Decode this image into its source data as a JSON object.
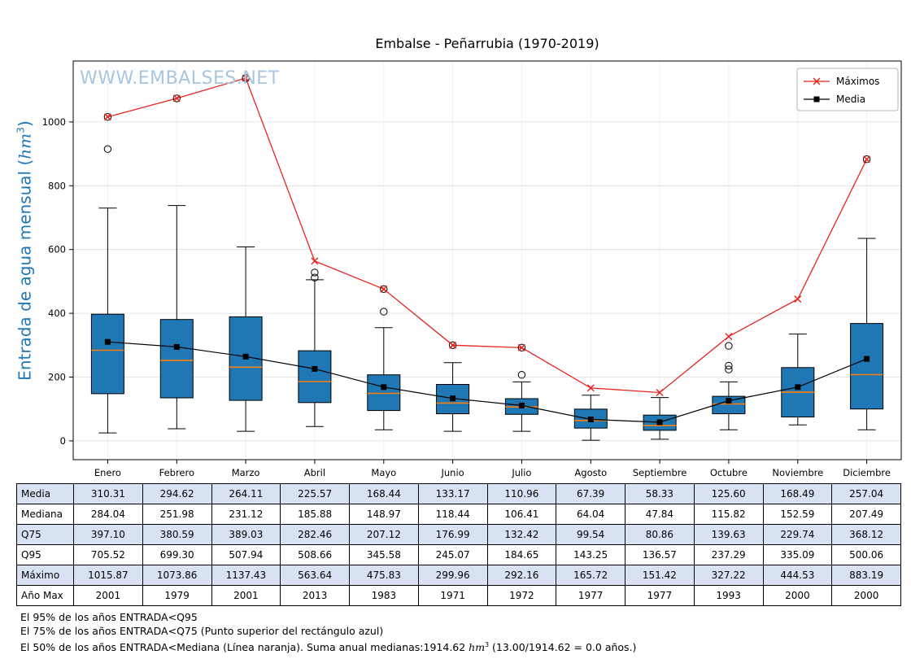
{
  "title": "Embalse - Peñarrubia (1970-2019)",
  "watermark": "WWW.EMBALSES.NET",
  "ylabel": {
    "prefix": "Entrada de agua mensual (",
    "unit": "hm",
    "exp": "3",
    "suffix": ")"
  },
  "legend": {
    "maximos_label": "Máximos",
    "media_label": "Media"
  },
  "table": {
    "rows": [
      {
        "label": "Media",
        "values": [
          "310.31",
          "294.62",
          "264.11",
          "225.57",
          "168.44",
          "133.17",
          "110.96",
          "67.39",
          "58.33",
          "125.60",
          "168.49",
          "257.04"
        ]
      },
      {
        "label": "Mediana",
        "values": [
          "284.04",
          "251.98",
          "231.12",
          "185.88",
          "148.97",
          "118.44",
          "106.41",
          "64.04",
          "47.84",
          "115.82",
          "152.59",
          "207.49"
        ]
      },
      {
        "label": "Q75",
        "values": [
          "397.10",
          "380.59",
          "389.03",
          "282.46",
          "207.12",
          "176.99",
          "132.42",
          "99.54",
          "80.86",
          "139.63",
          "229.74",
          "368.12"
        ]
      },
      {
        "label": "Q95",
        "values": [
          "705.52",
          "699.30",
          "507.94",
          "508.66",
          "345.58",
          "245.07",
          "184.65",
          "143.25",
          "136.57",
          "237.29",
          "335.09",
          "500.06"
        ]
      },
      {
        "label": "Máximo",
        "values": [
          "1015.87",
          "1073.86",
          "1137.43",
          "563.64",
          "475.83",
          "299.96",
          "292.16",
          "165.72",
          "151.42",
          "327.22",
          "444.53",
          "883.19"
        ]
      },
      {
        "label": "Año Max",
        "values": [
          "2001",
          "1979",
          "2001",
          "2013",
          "1983",
          "1971",
          "1972",
          "1977",
          "1977",
          "1993",
          "2000",
          "2000"
        ]
      }
    ]
  },
  "footer": {
    "line1": "El 95% de los años ENTRADA<Q95",
    "line2": "El 75% de los años ENTRADA<Q75 (Punto superior del rectángulo azul)",
    "line3a": "El 50% de los años ENTRADA<Mediana (Línea naranja). Suma anual medianas:1914.62 ",
    "line3_unit": "hm",
    "line3_exp": "3",
    "line3b": " (13.00/1914.62 = 0.0 años.)"
  },
  "chart_data": {
    "type": "boxplot+lines",
    "title": "Embalse - Peñarrubia (1970-2019)",
    "ylabel": "Entrada de agua mensual (hm³)",
    "categories": [
      "Enero",
      "Febrero",
      "Marzo",
      "Abril",
      "Mayo",
      "Junio",
      "Julio",
      "Agosto",
      "Septiembre",
      "Octubre",
      "Noviembre",
      "Diciembre"
    ],
    "ylim": [
      -59,
      1191
    ],
    "yticks": [
      0,
      200,
      400,
      600,
      800,
      1000
    ],
    "grid": true,
    "legend_position": "top-right",
    "series": {
      "media": [
        310.31,
        294.62,
        264.11,
        225.57,
        168.44,
        133.17,
        110.96,
        67.39,
        58.33,
        125.6,
        168.49,
        257.04
      ],
      "mediana": [
        284.04,
        251.98,
        231.12,
        185.88,
        148.97,
        118.44,
        106.41,
        64.04,
        47.84,
        115.82,
        152.59,
        207.49
      ],
      "q75": [
        397.1,
        380.59,
        389.03,
        282.46,
        207.12,
        176.99,
        132.42,
        99.54,
        80.86,
        139.63,
        229.74,
        368.12
      ],
      "q95": [
        705.52,
        699.3,
        507.94,
        508.66,
        345.58,
        245.07,
        184.65,
        143.25,
        136.57,
        237.29,
        335.09,
        500.06
      ],
      "maximo": [
        1015.87,
        1073.86,
        1137.43,
        563.64,
        475.83,
        299.96,
        292.16,
        165.72,
        151.42,
        327.22,
        444.53,
        883.19
      ],
      "anio_max": [
        2001,
        1979,
        2001,
        2013,
        1983,
        1971,
        1972,
        1977,
        1977,
        1993,
        2000,
        2000
      ]
    },
    "boxes": [
      {
        "q1": 148,
        "med": 284.04,
        "q3": 397.1,
        "wlo": 25,
        "whi": 730,
        "outliers": [
          915
        ],
        "max_circled": true
      },
      {
        "q1": 135,
        "med": 251.98,
        "q3": 380.59,
        "wlo": 38,
        "whi": 738,
        "outliers": [],
        "max_circled": true
      },
      {
        "q1": 127,
        "med": 231.12,
        "q3": 389.03,
        "wlo": 30,
        "whi": 608,
        "outliers": [],
        "max_circled": true
      },
      {
        "q1": 120,
        "med": 185.88,
        "q3": 282.46,
        "wlo": 45,
        "whi": 505,
        "outliers": [
          512,
          528
        ],
        "max_circled": false
      },
      {
        "q1": 95,
        "med": 148.97,
        "q3": 207.12,
        "wlo": 35,
        "whi": 355,
        "outliers": [
          405
        ],
        "max_circled": true
      },
      {
        "q1": 85,
        "med": 118.44,
        "q3": 176.99,
        "wlo": 30,
        "whi": 245,
        "outliers": [],
        "max_circled": true
      },
      {
        "q1": 83,
        "med": 106.41,
        "q3": 132.42,
        "wlo": 30,
        "whi": 185,
        "outliers": [
          207
        ],
        "max_circled": true
      },
      {
        "q1": 40,
        "med": 64.04,
        "q3": 99.54,
        "wlo": 2,
        "whi": 143,
        "outliers": [],
        "max_circled": false
      },
      {
        "q1": 33,
        "med": 47.84,
        "q3": 80.86,
        "wlo": 5,
        "whi": 136,
        "outliers": [],
        "max_circled": false
      },
      {
        "q1": 85,
        "med": 115.82,
        "q3": 139.63,
        "wlo": 35,
        "whi": 185,
        "outliers": [
          224,
          236,
          298
        ],
        "max_circled": false
      },
      {
        "q1": 75,
        "med": 152.59,
        "q3": 229.74,
        "wlo": 50,
        "whi": 335,
        "outliers": [],
        "max_circled": false
      },
      {
        "q1": 100,
        "med": 207.49,
        "q3": 368.12,
        "wlo": 35,
        "whi": 635,
        "outliers": [],
        "max_circled": true
      }
    ],
    "colors": {
      "box_fill": "#1f77b4",
      "median_line": "#ff7f0e",
      "max_line": "#e8251f",
      "media_line": "#000000",
      "grid": "#dcdcdc",
      "grid_v": "#ececec",
      "table_alt_row": "#d9e2f3",
      "ylabel": "#1f77b4",
      "watermark": "#a9c6e0"
    }
  }
}
